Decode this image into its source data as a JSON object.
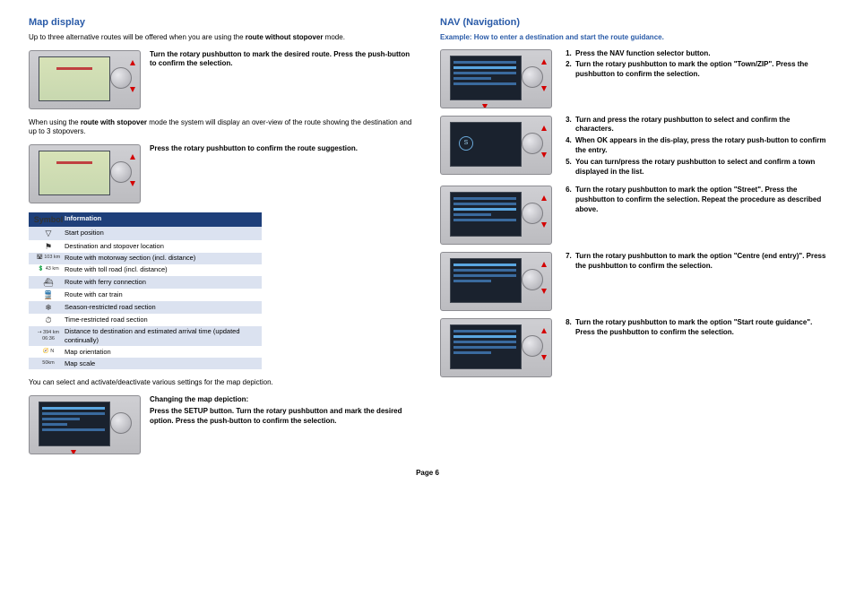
{
  "page_label": "Page 6",
  "left": {
    "heading": "Map display",
    "intro_prefix": "Up to three alternative routes will be offered when you are using the ",
    "intro_bold": "route without stopover",
    "intro_suffix": " mode.",
    "step1": "Turn the rotary pushbutton to mark the desired route. Press the push-button to confirm the selection.",
    "with_prefix": "When using the ",
    "with_bold": "route with stopover",
    "with_suffix": " mode the system will display an over-view of the route showing the destination and up to 3 stopovers.",
    "step2": "Press the rotary pushbutton to confirm the route suggestion.",
    "table_head_symbol": "Symbol",
    "table_head_info": "Information",
    "rows": [
      {
        "sym": "▽",
        "info": "Start position"
      },
      {
        "sym": "⚑",
        "info": "Destination and stopover location"
      },
      {
        "sym": "🛣 103 km",
        "info": "Route with motorway section (incl. distance)"
      },
      {
        "sym": "💲 43 km",
        "info": "Route with toll road (incl. distance)"
      },
      {
        "sym": "⛴",
        "info": "Route with ferry connection"
      },
      {
        "sym": "🚆",
        "info": "Route with car train"
      },
      {
        "sym": "❄",
        "info": "Season-restricted road section"
      },
      {
        "sym": "⏱",
        "info": "Time-restricted road section"
      },
      {
        "sym": "⇢ 394 km 06:36",
        "info": "Distance to destination and estimated arrival time (updated continually)"
      },
      {
        "sym": "🧭 N",
        "info": "Map orientation"
      },
      {
        "sym": "50km",
        "info": "Map scale"
      }
    ],
    "settings_note": "You can select and activate/deactivate various settings for the map depiction.",
    "change_head": "Changing the map depiction:",
    "change_body": "Press the  SETUP button. Turn the rotary pushbutton and mark the desired option. Press the push-button to confirm the selection."
  },
  "right": {
    "heading": "NAV (Navigation)",
    "subhead": "Example: How to enter a destination and start the route guidance.",
    "s1": "Press the NAV function selector button.",
    "s2": "Turn the rotary pushbutton to mark the option \"Town/ZIP\". Press the pushbutton to confirm the selection.",
    "s3": "Turn and press the rotary pushbutton to select and confirm the characters.",
    "s4": "When OK appears in the dis-play, press the rotary push-button to confirm the entry.",
    "s5": "You can turn/press the rotary pushbutton to select and confirm a town displayed in the list.",
    "s6": "Turn the rotary pushbutton to mark the option \"Street\". Press the pushbutton to confirm the selection. Repeat the procedure as described above.",
    "s7": "Turn the rotary pushbutton to mark the option \"Centre (end entry)\". Press the pushbutton to confirm the selection.",
    "s8": "Turn the rotary pushbutton to mark the option \"Start route guidance\". Press the pushbutton to confirm the selection."
  },
  "colors": {
    "heading_blue": "#2a5ba8",
    "table_header_bg": "#1e3f7a",
    "table_row_alt": "#dbe2f0",
    "device_bg": "#cfcfd3",
    "arrow_red": "#d40000"
  }
}
